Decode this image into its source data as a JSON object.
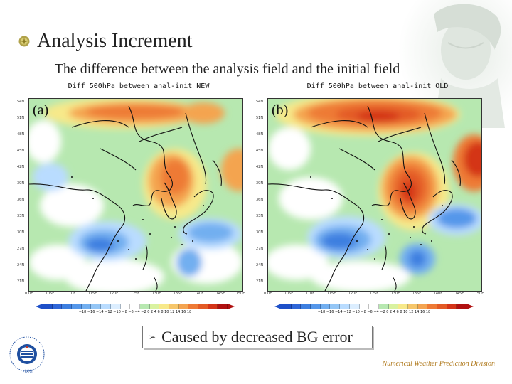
{
  "slide": {
    "heading": "Analysis Increment",
    "subtitle_dash": "–",
    "subtitle": "The difference between the analysis field and the initial field",
    "callout_arrow": "➢",
    "callout": "Caused by decreased BG error",
    "footer": "Numerical Weather Prediction Division",
    "logo_lettering": "KOREA METEOROLOGICAL ADMINISTRATION 기상청",
    "accent_color": "#b07a1e"
  },
  "panels": [
    {
      "label": "(a)",
      "title": "Diff 500hPa between anal-init NEW",
      "colorbar_ticks": "−18 −16 −14 −12 −10 −8 −6 −4 −2  0  2  4  6  8  10  12  14  16  18"
    },
    {
      "label": "(b)",
      "title": "Diff 500hPa between anal-init OLD",
      "colorbar_ticks": "−18 −16 −14 −12 −10 −8 −6 −4 −2  0  2  4  6  8  10  12  14  16  18"
    }
  ],
  "axes": {
    "lat": [
      "54N",
      "51N",
      "48N",
      "45N",
      "42N",
      "39N",
      "36N",
      "33N",
      "30N",
      "27N",
      "24N",
      "21N"
    ],
    "lon": [
      "100E",
      "105E",
      "110E",
      "115E",
      "120E",
      "125E",
      "130E",
      "135E",
      "140E",
      "145E",
      "150E"
    ]
  }
}
